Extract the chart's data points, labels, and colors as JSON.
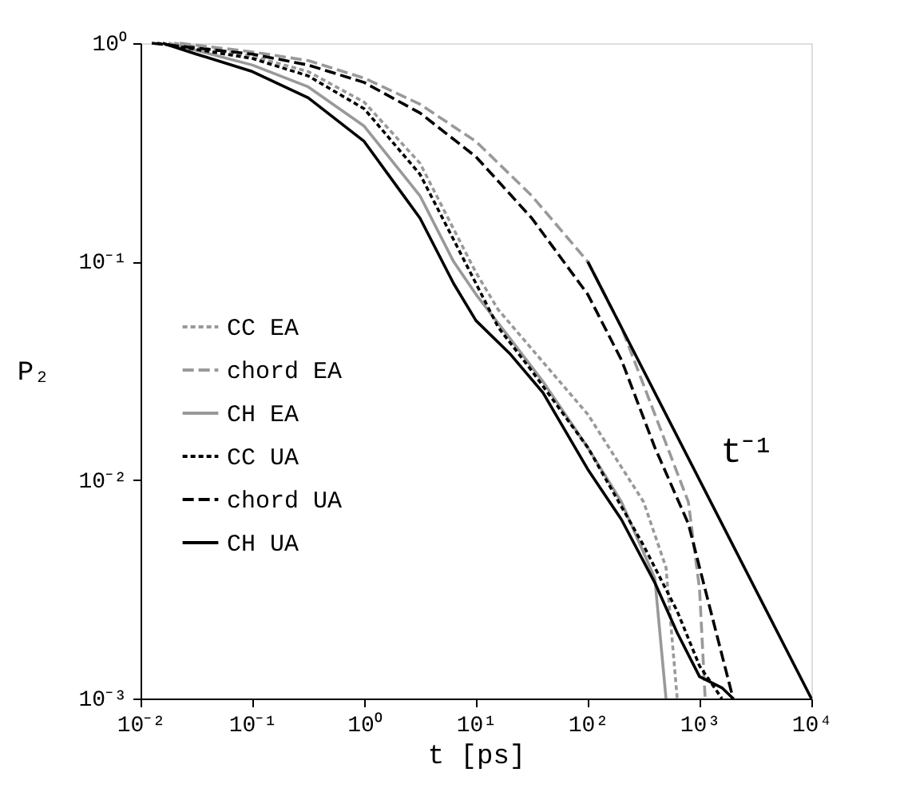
{
  "chart_data": {
    "type": "line",
    "xlabel": "t [ps]",
    "ylabel": "P₂",
    "log": "xy",
    "grid": false,
    "legend": "left",
    "marker": "none",
    "xlim": [
      0.01,
      10000
    ],
    "ylim": [
      0.001,
      1
    ],
    "xticks": [
      {
        "value": 0.01,
        "label": "10⁻²"
      },
      {
        "value": 0.1,
        "label": "10⁻¹"
      },
      {
        "value": 1,
        "label": "10⁰"
      },
      {
        "value": 10,
        "label": "10¹"
      },
      {
        "value": 100,
        "label": "10²"
      },
      {
        "value": 1000,
        "label": "10³"
      },
      {
        "value": 10000,
        "label": "10⁴"
      }
    ],
    "yticks": [
      {
        "value": 0.001,
        "label": "10⁻³"
      },
      {
        "value": 0.01,
        "label": "10⁻²"
      },
      {
        "value": 0.1,
        "label": "10⁻¹"
      },
      {
        "value": 1,
        "label": "10⁰"
      }
    ],
    "series": [
      {
        "name": "CC EA",
        "color": "#999999",
        "line_style": "dotted",
        "x": [
          0.02,
          0.1,
          0.316,
          1,
          3.16,
          6.31,
          10,
          15.8,
          31.6,
          100,
          316,
          501,
          631
        ],
        "values": [
          1,
          0.871,
          0.741,
          0.537,
          0.282,
          0.141,
          0.0891,
          0.0603,
          0.0398,
          0.02,
          0.00794,
          0.00398,
          0.001
        ]
      },
      {
        "name": "chord EA",
        "color": "#999999",
        "line_style": "dashed",
        "x": [
          0.0224,
          0.1,
          0.316,
          1,
          3.16,
          10,
          31.6,
          100,
          200,
          398,
          794,
          1000,
          1122
        ],
        "values": [
          1,
          0.912,
          0.832,
          0.692,
          0.525,
          0.355,
          0.2,
          0.1,
          0.0501,
          0.02,
          0.00794,
          0.00316,
          0.001
        ]
      },
      {
        "name": "CH EA",
        "color": "#999999",
        "line_style": "solid",
        "x": [
          0.0178,
          0.1,
          0.316,
          1,
          3.16,
          6.31,
          10,
          20,
          39.8,
          100,
          200,
          398,
          501
        ],
        "values": [
          1,
          0.794,
          0.631,
          0.417,
          0.2,
          0.1,
          0.0708,
          0.0447,
          0.0282,
          0.0141,
          0.00794,
          0.00355,
          0.001
        ]
      },
      {
        "name": "CC UA",
        "color": "#000000",
        "line_style": "dotted",
        "x": [
          0.0141,
          0.1,
          0.316,
          1,
          3.16,
          6.31,
          10,
          15.8,
          31.6,
          100,
          316,
          631,
          1000,
          1585
        ],
        "values": [
          1,
          0.851,
          0.708,
          0.501,
          0.251,
          0.126,
          0.0794,
          0.0501,
          0.0316,
          0.0141,
          0.00501,
          0.00251,
          0.00141,
          0.001
        ]
      },
      {
        "name": "chord UA",
        "color": "#000000",
        "line_style": "dashed",
        "x": [
          0.0126,
          0.1,
          0.316,
          1,
          3.16,
          10,
          31.6,
          100,
          200,
          398,
          794,
          1259,
          1995
        ],
        "values": [
          1,
          0.891,
          0.794,
          0.661,
          0.479,
          0.302,
          0.158,
          0.0708,
          0.0355,
          0.0141,
          0.00631,
          0.00251,
          0.001
        ]
      },
      {
        "name": "CH UA",
        "color": "#000000",
        "line_style": "solid",
        "x": [
          0.0158,
          0.0316,
          0.1,
          0.316,
          1,
          3.16,
          6.31,
          10,
          20,
          39.8,
          100,
          200,
          398,
          631,
          1000,
          1585,
          1995
        ],
        "values": [
          1,
          0.891,
          0.741,
          0.562,
          0.355,
          0.158,
          0.0794,
          0.0537,
          0.038,
          0.0251,
          0.0112,
          0.0066,
          0.00339,
          0.002,
          0.00126,
          0.00112,
          0.001
        ]
      },
      {
        "color": "#000000",
        "line_style": "solid",
        "x": [
          100,
          10000
        ],
        "values": [
          0.1,
          0.001
        ]
      }
    ],
    "annotations": [
      "t⁻¹"
    ]
  }
}
